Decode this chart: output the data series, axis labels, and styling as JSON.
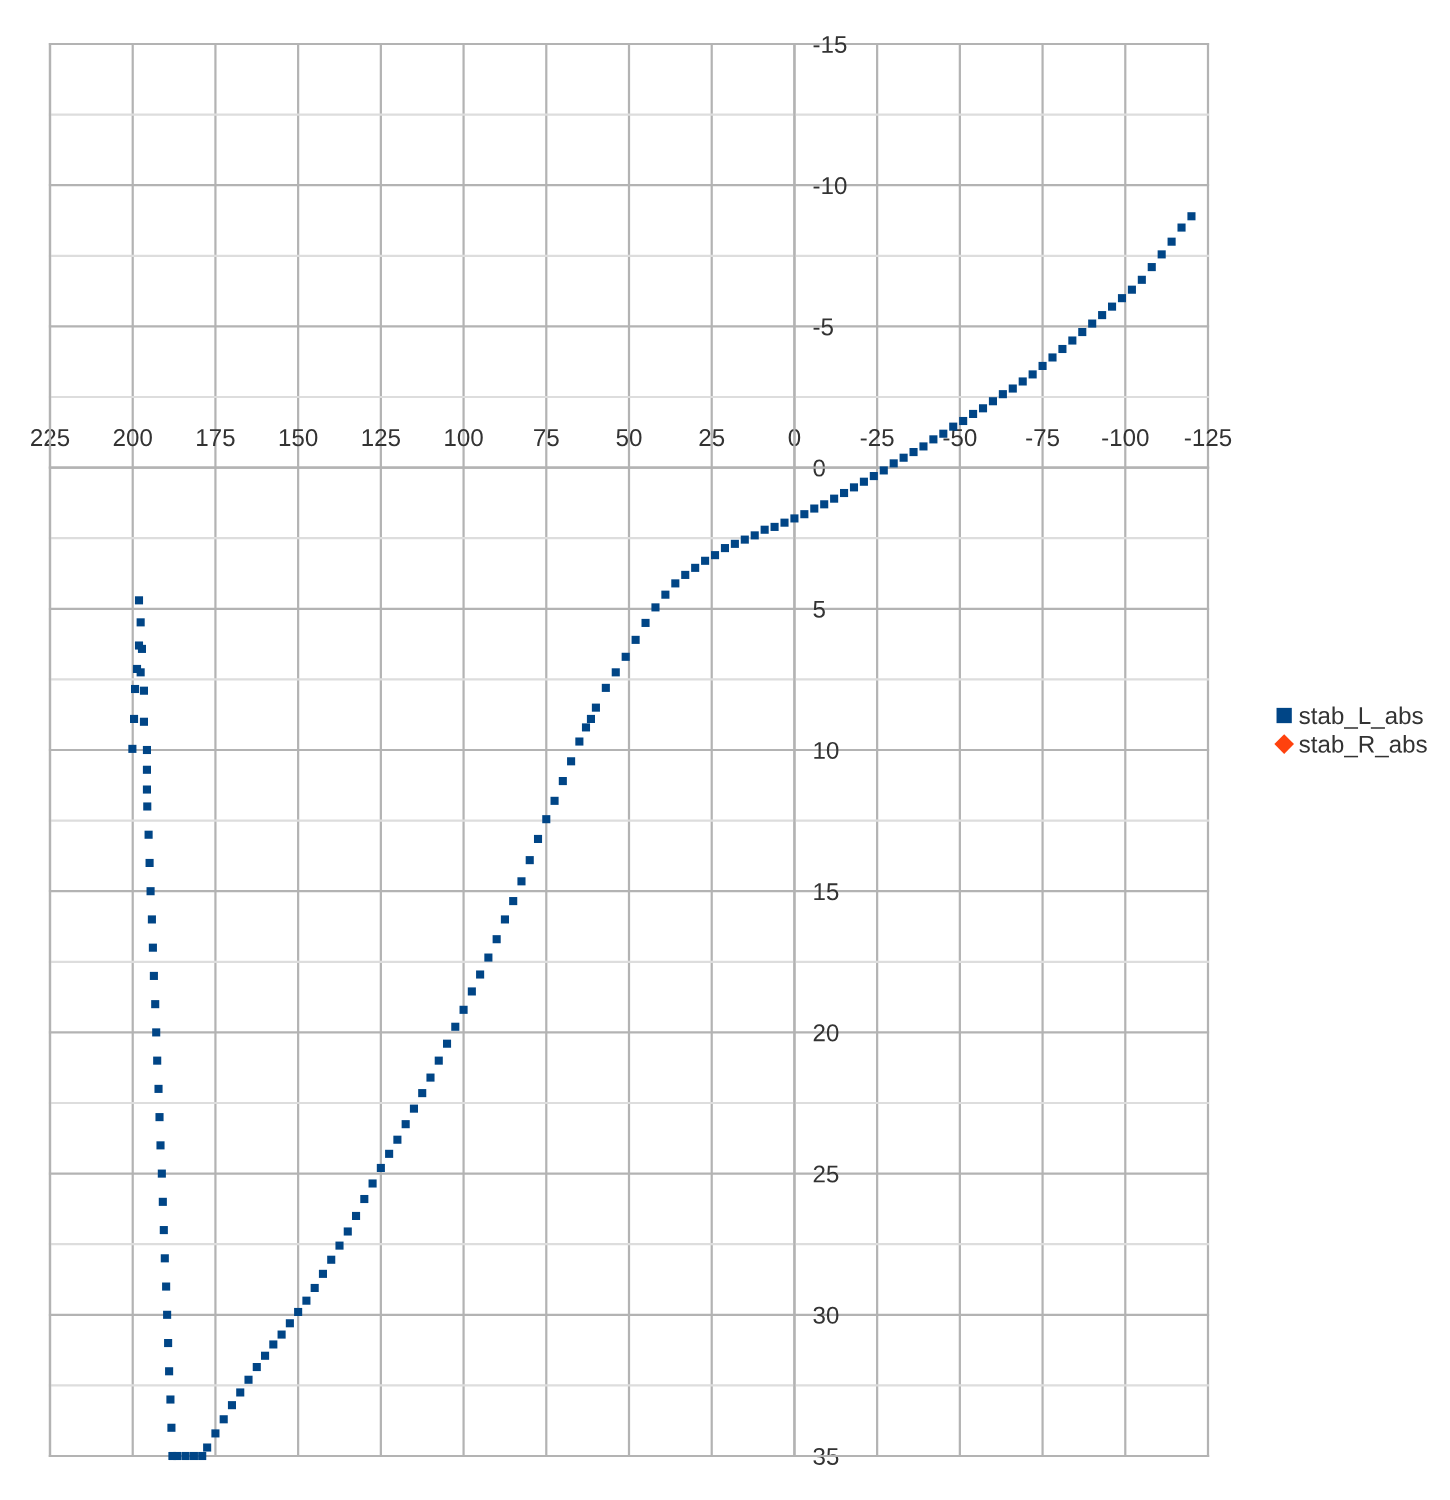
{
  "chart_data": {
    "type": "scatter",
    "xlim": [
      225,
      -125
    ],
    "ylim": [
      35,
      -15
    ],
    "xticks": [
      225,
      200,
      175,
      150,
      125,
      100,
      75,
      50,
      25,
      0,
      -25,
      -50,
      -75,
      -100,
      -125
    ],
    "yticks": [
      -15,
      {
        "value": -12.5,
        "label": null
      },
      -10,
      {
        "value": -7.5,
        "label": null
      },
      -5,
      {
        "value": -2.5,
        "label": null
      },
      0,
      {
        "value": 2.5,
        "label": null
      },
      5,
      {
        "value": 7.5,
        "label": null
      },
      10,
      {
        "value": 12.5,
        "label": null
      },
      15,
      {
        "value": 17.5,
        "label": null
      },
      20,
      {
        "value": 22.5,
        "label": null
      },
      25,
      {
        "value": 27.5,
        "label": null
      },
      30,
      {
        "value": 32.5,
        "label": null
      },
      35
    ],
    "grid": true,
    "legend": "right",
    "series": [
      {
        "name": "stab_L_abs",
        "color": "#004586",
        "marker": "square",
        "x": [
          -120,
          -117,
          -114,
          -111,
          -108,
          -105,
          -102,
          -99,
          -96,
          -93,
          -90,
          -87,
          -84,
          -81,
          -78,
          -75,
          -72,
          -69,
          -66,
          -63,
          -60,
          -57,
          -54,
          -51,
          -48,
          -45,
          -42,
          -39,
          -36,
          -33,
          -30,
          -27,
          -24,
          -21,
          -18,
          -15,
          -12,
          -9,
          -6,
          -3,
          0,
          3,
          6,
          9,
          12,
          15,
          18,
          21,
          24,
          27,
          30,
          33,
          36,
          39,
          42,
          45,
          48,
          51,
          54,
          57,
          60,
          61.5,
          63,
          65,
          67.5,
          70,
          72.5,
          75,
          77.5,
          80,
          82.5,
          85,
          87.5,
          90,
          92.5,
          95,
          97.5,
          100,
          102.5,
          105,
          107.5,
          110,
          112.5,
          115,
          117.5,
          120,
          122.5,
          125,
          127.5,
          130,
          132.5,
          135,
          137.5,
          140,
          142.5,
          145,
          147.5,
          150,
          152.5,
          155,
          157.5,
          160,
          162.5,
          165,
          167.5,
          170,
          172.5,
          175,
          177.5,
          179,
          181.5,
          184,
          186.5,
          188,
          188.3,
          188.6,
          189.0,
          189.3,
          189.6,
          189.9,
          190.3,
          190.6,
          190.9,
          191.2,
          191.6,
          191.9,
          192.2,
          192.6,
          192.9,
          193.2,
          193.6,
          193.9,
          194.2,
          194.6,
          194.9,
          195.2,
          195.6,
          195.7,
          195.7,
          195.7,
          200.1,
          196.6,
          199.6,
          196.6,
          199.3,
          197.6,
          198.7,
          197.2,
          198.1,
          197.6,
          198.1
        ],
        "values": [
          -8.9,
          -8.5,
          -8.0,
          -7.55,
          -7.1,
          -6.65,
          -6.3,
          -6.0,
          -5.7,
          -5.4,
          -5.1,
          -4.8,
          -4.5,
          -4.2,
          -3.9,
          -3.6,
          -3.3,
          -3.05,
          -2.8,
          -2.6,
          -2.35,
          -2.1,
          -1.9,
          -1.65,
          -1.45,
          -1.2,
          -1.0,
          -0.75,
          -0.55,
          -0.35,
          -0.15,
          0.1,
          0.3,
          0.5,
          0.7,
          0.9,
          1.1,
          1.3,
          1.45,
          1.65,
          1.8,
          1.95,
          2.1,
          2.2,
          2.4,
          2.55,
          2.7,
          2.85,
          3.1,
          3.3,
          3.55,
          3.8,
          4.1,
          4.5,
          4.95,
          5.5,
          6.1,
          6.7,
          7.25,
          7.8,
          8.5,
          8.9,
          9.2,
          9.7,
          10.4,
          11.1,
          11.8,
          12.45,
          13.15,
          13.9,
          14.65,
          15.35,
          16.0,
          16.7,
          17.35,
          17.95,
          18.55,
          19.2,
          19.8,
          20.4,
          21.0,
          21.6,
          22.15,
          22.7,
          23.25,
          23.8,
          24.3,
          24.8,
          25.35,
          25.9,
          26.5,
          27.05,
          27.55,
          28.05,
          28.55,
          29.05,
          29.5,
          29.9,
          30.3,
          30.7,
          31.05,
          31.45,
          31.85,
          32.3,
          32.75,
          33.2,
          33.7,
          34.2,
          34.7,
          35,
          35,
          35,
          35,
          35,
          34,
          33,
          32,
          31,
          30,
          29,
          28,
          27,
          26,
          25,
          24,
          23,
          22,
          21,
          20,
          19,
          18,
          17,
          16,
          15,
          14,
          13,
          12,
          11.4,
          10.7,
          10.0,
          9.96,
          9.0,
          8.9,
          7.9,
          7.84,
          7.25,
          7.13,
          6.42,
          6.3,
          5.48,
          4.7
        ]
      },
      {
        "name": "stab_R_abs",
        "color": "#ff420e",
        "marker": "diamond"
      }
    ]
  }
}
